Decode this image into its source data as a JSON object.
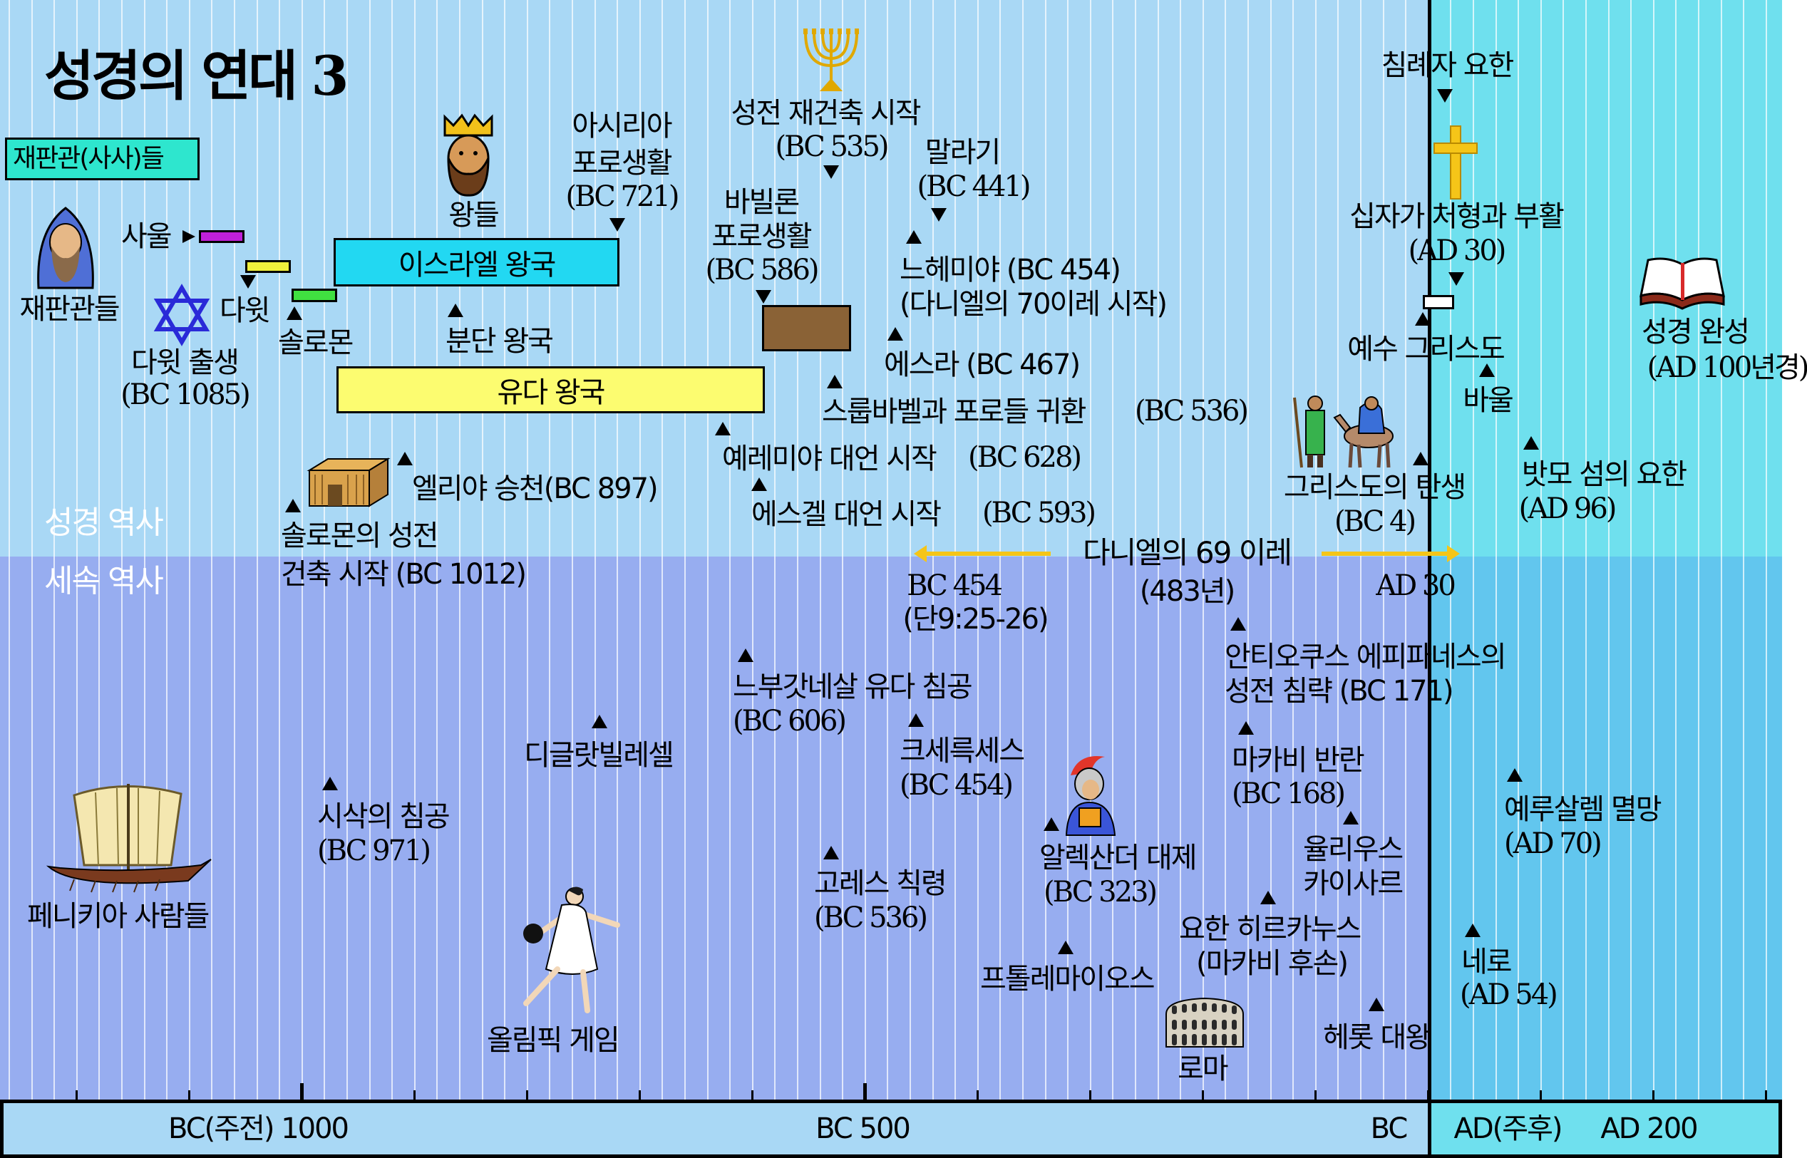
{
  "title": "성경의 연대 3",
  "judges_box_label": "재판관(사사)들",
  "bands": {
    "biblical": "성경 역사",
    "secular": "세속 역사"
  },
  "bars": {
    "israel": "이스라엘 왕국",
    "judah": "유다 왕국"
  },
  "colors": {
    "biblical_bc": "#a9d8f5",
    "biblical_ad": "#6fe0ee",
    "secular_bc": "#97adf0",
    "secular_ad": "#62c6ee",
    "israel_bar": "#22d8f2",
    "judah_bar": "#fcfc70",
    "babylon_bar": "#8a6236",
    "saul_bar": "#c020d8",
    "david_bar": "#f0f03c",
    "solomon_bar": "#40e040",
    "judges_box": "#2ee6ce",
    "daniel_arrow": "#f5c518"
  },
  "labels": {
    "judges": "재판관들",
    "saul": "사울",
    "david": "다윗",
    "david_birth": "다윗 출생",
    "david_birth_date": "(BC 1085)",
    "solomon": "솔로몬",
    "kings": "왕들",
    "assyria_1": "아시리아",
    "assyria_2": "포로생활",
    "assyria_date": "(BC 721)",
    "divided": "분단 왕국",
    "elijah": "엘리야 승천(BC 897)",
    "temple_1": "솔로몬의 성전",
    "temple_2": "건축 시작 (BC 1012)",
    "temple_rebuild": "성전 재건축 시작",
    "temple_rebuild_date": "(BC 535)",
    "babylon_1": "바빌론",
    "babylon_2": "포로생활",
    "babylon_date": "(BC 586)",
    "malachi": "말라기",
    "malachi_date": "(BC 441)",
    "nehemiah": "느헤미야  (BC 454)",
    "daniel70": "(다니엘의 70이레 시작)",
    "ezra": "에스라  (BC 467)",
    "zerubbabel": "스룹바벨과 포로들 귀환",
    "zerubbabel_date": "(BC 536)",
    "jeremiah": "예레미야 대언 시작",
    "jeremiah_date": "(BC 628)",
    "ezekiel": "에스겔 대언 시작",
    "ezekiel_date": "(BC 593)",
    "john_baptist": "침례자 요한",
    "crucifixion": "십자가 처형과 부활",
    "crucifixion_date": "(AD 30)",
    "jesus": "예수 그리스도",
    "paul": "바울",
    "nativity": "그리스도의 탄생",
    "nativity_date": "(BC 4)",
    "patmos": "밧모 섬의 요한",
    "patmos_date": "(AD 96)",
    "bible_complete": "성경 완성",
    "bible_complete_date": "(AD 100년경)",
    "daniel69": "다니엘의 69 이레",
    "daniel69_sub": "(483년)",
    "d69_start": "BC 454",
    "d69_start_ref": "(단9:25-26)",
    "d69_end": "AD 30",
    "antiochus_1": "안티오쿠스 에피파네스의",
    "antiochus_2": "성전 침략 (BC 171)",
    "nebuchadnezzar": "느부갓네살 유다 침공",
    "nebuchadnezzar_date": "(BC 606)",
    "tiglath": "디글랏빌레셀",
    "xerxes": "크세륵세스",
    "xerxes_date": "(BC 454)",
    "maccabean": "마카비 반란",
    "maccabean_date": "(BC 168)",
    "shishak": "시삭의 침공",
    "shishak_date": "(BC 971)",
    "jerusalem": "예루살렘 멸망",
    "jerusalem_date": "(AD 70)",
    "alexander": "알렉산더 대제",
    "alexander_date": "(BC 323)",
    "julius_1": "율리우스",
    "julius_2": "카이사르",
    "cyrus": "고레스 칙령",
    "cyrus_date": "(BC 536)",
    "phoenicians": "페니키아 사람들",
    "hyrcanus_1": "요한 히르카누스",
    "hyrcanus_2": "(마카비 후손)",
    "nero": "네로",
    "nero_date": "(AD 54)",
    "ptolemy": "프톨레마이오스",
    "herod": "헤롯 대왕",
    "olympic": "올림픽 게임",
    "rome": "로마"
  },
  "axis": {
    "bc1000": "BC(주전) 1000",
    "bc500": "BC 500",
    "bc": "BC",
    "ad": "AD(주후)",
    "ad200": "AD 200"
  },
  "icons": [
    "menorah-icon",
    "king-crown-icon",
    "bearded-judge-icon",
    "star-of-david-icon",
    "cross-icon",
    "open-bible-icon",
    "temple-building-icon",
    "nativity-travelers-icon",
    "roman-soldier-icon",
    "phoenician-ship-icon",
    "discus-thrower-icon",
    "colosseum-icon"
  ]
}
